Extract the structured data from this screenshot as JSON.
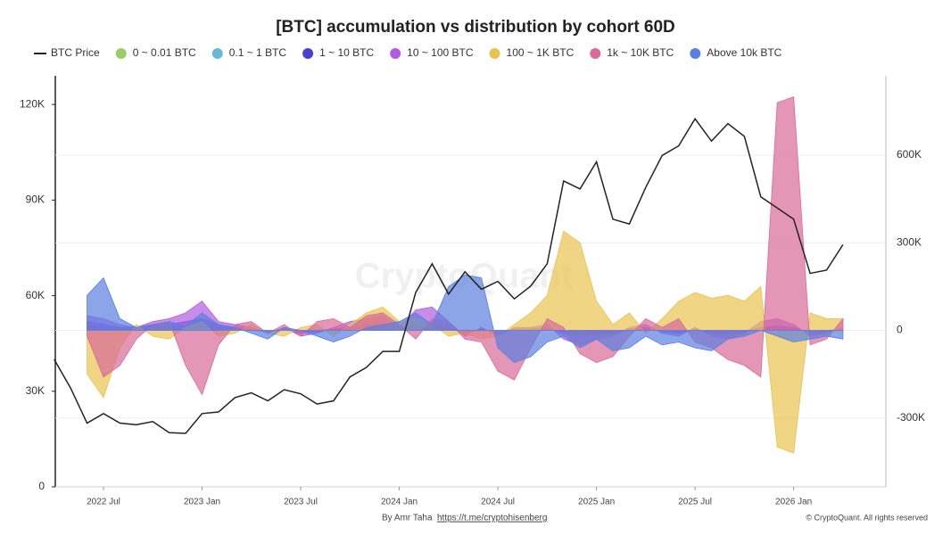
{
  "chart_data": {
    "type": "line-area",
    "title": "[BTC] accumulation vs distribution by cohort 60D",
    "watermark": "CryptoQuant",
    "credit": "By Amr Taha",
    "link": "https://t.me/cryptohisenberg",
    "copyright": "© CryptoQuant. All rights reserved",
    "x": [
      "2022 Apr",
      "2022 May",
      "2022 Jun",
      "2022 Jul",
      "2022 Aug",
      "2022 Sep",
      "2022 Oct",
      "2022 Nov",
      "2022 Dec",
      "2023 Jan",
      "2023 Feb",
      "2023 Mar",
      "2023 Apr",
      "2023 May",
      "2023 Jun",
      "2023 Jul",
      "2023 Aug",
      "2023 Sep",
      "2023 Oct",
      "2023 Nov",
      "2023 Dec",
      "2024 Jan",
      "2024 Feb",
      "2024 Mar",
      "2024 Apr",
      "2024 May",
      "2024 Jun",
      "2024 Jul",
      "2024 Aug",
      "2024 Sep",
      "2024 Oct",
      "2024 Nov",
      "2024 Dec",
      "2025 Jan",
      "2025 Feb",
      "2025 Mar",
      "2025 Apr",
      "2025 May",
      "2025 Jun",
      "2025 Jul",
      "2025 Aug",
      "2025 Sep",
      "2025 Oct",
      "2025 Nov",
      "2025 Dec",
      "2026 Jan",
      "2026 Feb",
      "2026 Mar",
      "2026 Apr"
    ],
    "xticks": [
      "2022 Jul",
      "2023 Jan",
      "2023 Jul",
      "2024 Jan",
      "2024 Jul",
      "2025 Jan",
      "2025 Jul",
      "2026 Jan"
    ],
    "ylim": [
      0,
      129000
    ],
    "yticks": [
      0,
      {
        "value": 30000,
        "label": "30K"
      },
      {
        "value": 60000,
        "label": "60K"
      },
      {
        "value": 90000,
        "label": "90K"
      },
      {
        "value": 120000,
        "label": "120K"
      }
    ],
    "y2lim": [
      -536000,
      872000
    ],
    "y2ticks": [
      {
        "value": -300000,
        "label": "-300K"
      },
      0,
      {
        "value": 300000,
        "label": "300K"
      },
      {
        "value": 600000,
        "label": "600K"
      }
    ],
    "grid": true,
    "series": [
      {
        "name": "BTC Price",
        "color": "#222222",
        "axis": "y",
        "values": [
          40000,
          31000,
          20000,
          23000,
          20000,
          19500,
          20500,
          17000,
          16800,
          23000,
          23500,
          28000,
          29500,
          27000,
          30500,
          29200,
          26000,
          27000,
          34500,
          37500,
          42500,
          42500,
          61000,
          70000,
          60500,
          67500,
          62000,
          64500,
          59000,
          63000,
          70000,
          96000,
          93500,
          102000,
          84000,
          82500,
          94000,
          104000,
          107000,
          115500,
          108500,
          114000,
          110000,
          91000,
          87500,
          84000,
          67000,
          68000,
          76000
        ]
      },
      {
        "name": "0 ~ 0.01 BTC",
        "color": "#9ccc65",
        "axis": "y2",
        "values": [
          null,
          null,
          5000,
          3000,
          2000,
          2000,
          3000,
          3000,
          5000,
          6000,
          3000,
          2000,
          0,
          -2000,
          0,
          -2000,
          0,
          2000,
          2000,
          3000,
          3000,
          0,
          3000,
          4000,
          2000,
          -2000,
          0,
          -2000,
          0,
          2000,
          2000,
          -2000,
          -3000,
          -2000,
          -2000,
          0,
          2000,
          0,
          -2000,
          0,
          -2000,
          -2000,
          0,
          2000,
          3000,
          2000,
          -2000,
          0,
          2000
        ]
      },
      {
        "name": "0.1 ~ 1 BTC",
        "color": "#6ab7d8",
        "axis": "y2",
        "values": [
          null,
          null,
          15000,
          10000,
          5000,
          5000,
          10000,
          10000,
          15000,
          20000,
          10000,
          5000,
          0,
          -5000,
          0,
          -5000,
          0,
          5000,
          5000,
          10000,
          10000,
          0,
          10000,
          15000,
          5000,
          -5000,
          0,
          -5000,
          0,
          5000,
          5000,
          -5000,
          -10000,
          -5000,
          -5000,
          0,
          5000,
          0,
          -5000,
          0,
          -5000,
          -5000,
          0,
          5000,
          10000,
          5000,
          -5000,
          0,
          5000
        ]
      },
      {
        "name": "1 ~ 10 BTC",
        "color": "#4b3fd1",
        "axis": "y2",
        "values": [
          null,
          null,
          30000,
          20000,
          10000,
          10000,
          20000,
          20000,
          30000,
          40000,
          20000,
          10000,
          5000,
          -5000,
          5000,
          -10000,
          -5000,
          5000,
          10000,
          20000,
          20000,
          5000,
          20000,
          30000,
          10000,
          -10000,
          5000,
          -10000,
          5000,
          5000,
          10000,
          -10000,
          -20000,
          -10000,
          -10000,
          5000,
          10000,
          -5000,
          -10000,
          5000,
          -10000,
          -10000,
          -5000,
          10000,
          15000,
          10000,
          -10000,
          -5000,
          5000
        ]
      },
      {
        "name": "10 ~ 100 BTC",
        "color": "#b05ce0",
        "axis": "y2",
        "values": [
          null,
          null,
          50000,
          40000,
          20000,
          10000,
          30000,
          40000,
          60000,
          100000,
          30000,
          20000,
          10000,
          -10000,
          10000,
          -20000,
          -10000,
          10000,
          30000,
          40000,
          50000,
          10000,
          70000,
          80000,
          30000,
          -20000,
          10000,
          -20000,
          10000,
          10000,
          20000,
          -30000,
          -50000,
          -30000,
          -20000,
          10000,
          20000,
          -10000,
          -20000,
          10000,
          -20000,
          -30000,
          -10000,
          30000,
          40000,
          20000,
          -20000,
          -10000,
          10000
        ]
      },
      {
        "name": "100 ~ 1K BTC",
        "color": "#e8c350",
        "axis": "y2",
        "values": [
          null,
          null,
          -150000,
          -230000,
          -60000,
          20000,
          -20000,
          -30000,
          10000,
          30000,
          -20000,
          -10000,
          20000,
          -10000,
          -20000,
          10000,
          20000,
          -20000,
          20000,
          60000,
          80000,
          30000,
          40000,
          20000,
          -20000,
          -10000,
          -30000,
          -20000,
          20000,
          60000,
          120000,
          340000,
          300000,
          100000,
          20000,
          60000,
          -10000,
          40000,
          100000,
          130000,
          110000,
          120000,
          100000,
          150000,
          -400000,
          -420000,
          60000,
          40000,
          40000
        ]
      },
      {
        "name": "1k ~ 10K BTC",
        "color": "#d96a99",
        "axis": "y2",
        "values": [
          null,
          null,
          -20000,
          -160000,
          -120000,
          -30000,
          20000,
          30000,
          -120000,
          -220000,
          -50000,
          20000,
          30000,
          -10000,
          20000,
          -20000,
          30000,
          40000,
          10000,
          50000,
          60000,
          20000,
          -30000,
          40000,
          30000,
          -30000,
          -40000,
          -140000,
          -170000,
          -60000,
          40000,
          10000,
          -80000,
          -110000,
          -90000,
          -20000,
          40000,
          10000,
          40000,
          -40000,
          -60000,
          -100000,
          -120000,
          -160000,
          780000,
          800000,
          -50000,
          -30000,
          40000
        ]
      },
      {
        "name": "Above 10k BTC",
        "color": "#5b7fe0",
        "axis": "y2",
        "values": [
          null,
          null,
          120000,
          180000,
          40000,
          10000,
          20000,
          30000,
          15000,
          60000,
          20000,
          10000,
          -10000,
          -30000,
          10000,
          0,
          -20000,
          -40000,
          -20000,
          10000,
          20000,
          30000,
          60000,
          20000,
          150000,
          190000,
          180000,
          -60000,
          -110000,
          -90000,
          -40000,
          -20000,
          -60000,
          -30000,
          -70000,
          -60000,
          -20000,
          -50000,
          -40000,
          -60000,
          -70000,
          -30000,
          -20000,
          0,
          -20000,
          -40000,
          -30000,
          -20000,
          -30000
        ]
      }
    ]
  }
}
